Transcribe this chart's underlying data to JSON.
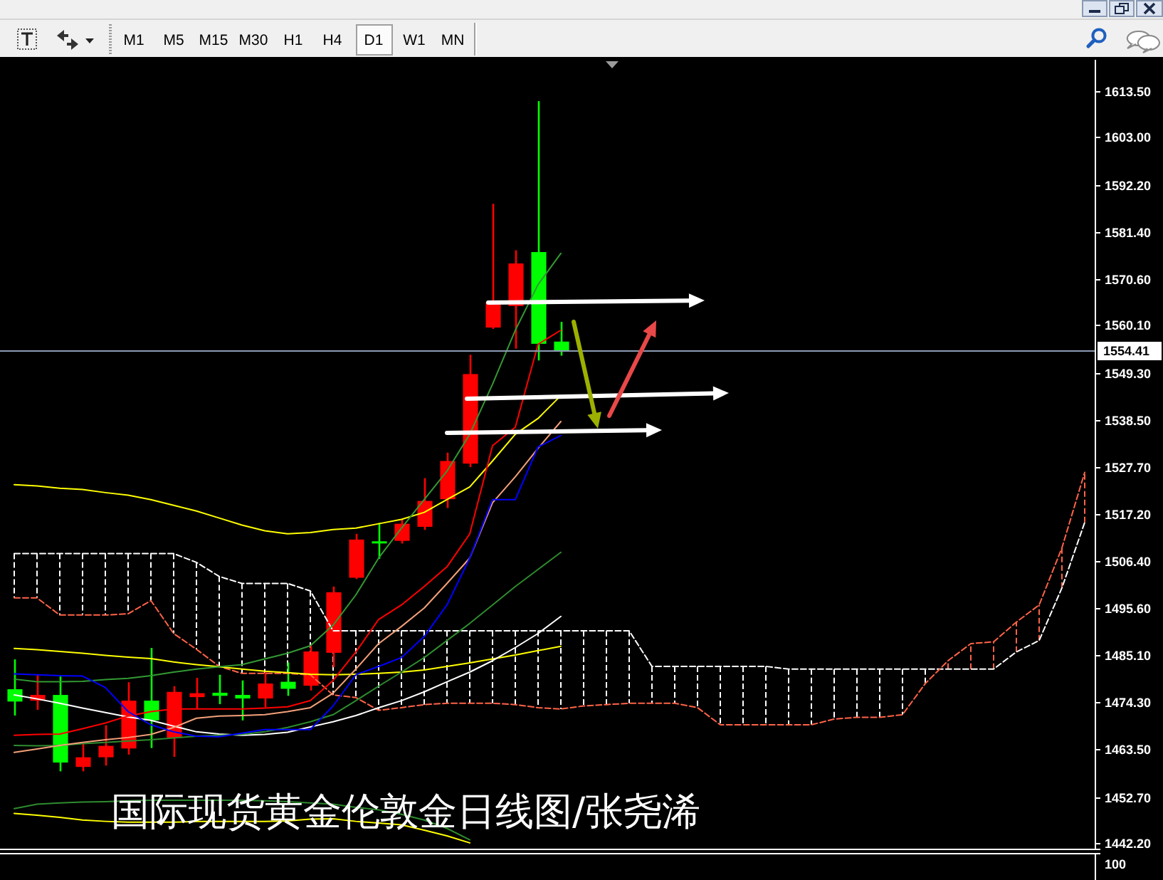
{
  "chart_data": {
    "type": "candlestick",
    "title": "国际现货黄金伦敦金日线图/张尧浠",
    "annotations": [
      "M1",
      "M5",
      "M15",
      "M30",
      "H1",
      "H4",
      "D1",
      "W1",
      "MN",
      "100"
    ],
    "categories": [
      null,
      null,
      null,
      null,
      null,
      null,
      null,
      null,
      null,
      null,
      null,
      null,
      null,
      null,
      null,
      null,
      null,
      null,
      null,
      null,
      null,
      null,
      null,
      null,
      null,
      null,
      null,
      null,
      null,
      null,
      null,
      null,
      null,
      null,
      null,
      null,
      null,
      null,
      null,
      null,
      null,
      null,
      null,
      null,
      null,
      null,
      null,
      null
    ],
    "ohlc": [
      [
        1474.4,
        1484.0,
        1471.2,
        1477.2
      ],
      [
        1475.9,
        1480.5,
        1472.5,
        1474.6
      ],
      [
        1460.5,
        1480.1,
        1458.5,
        1475.9
      ],
      [
        1461.7,
        1464.7,
        1458.5,
        1459.5
      ],
      [
        1464.3,
        1469.0,
        1459.8,
        1461.7
      ],
      [
        1474.6,
        1478.8,
        1462.3,
        1463.7
      ],
      [
        1470.1,
        1486.6,
        1463.8,
        1474.6
      ],
      [
        1476.6,
        1477.9,
        1461.8,
        1466.1
      ],
      [
        1476.3,
        1479.8,
        1472.7,
        1475.4
      ],
      [
        1475.7,
        1480.5,
        1473.8,
        1476.4
      ],
      [
        1475.1,
        1479.2,
        1470.1,
        1475.9
      ],
      [
        1478.5,
        1481.1,
        1473.1,
        1475.1
      ],
      [
        1477.3,
        1483.3,
        1475.7,
        1478.9
      ],
      [
        1485.8,
        1487.2,
        1476.9,
        1478.0
      ],
      [
        1499.3,
        1500.6,
        1482.2,
        1485.5
      ],
      [
        1511.3,
        1512.6,
        1502.3,
        1502.6
      ],
      [
        1510.6,
        1515.1,
        1506.9,
        1510.9
      ],
      [
        1514.9,
        1516.0,
        1510.4,
        1511.0
      ],
      [
        1520.1,
        1525.3,
        1513.5,
        1514.2
      ],
      [
        1529.2,
        1531.1,
        1518.5,
        1520.5
      ],
      [
        1549.0,
        1553.4,
        1527.8,
        1528.6
      ],
      [
        1565.4,
        1587.8,
        1559.3,
        1559.6
      ],
      [
        1574.2,
        1577.2,
        1554.8,
        1564.5
      ],
      [
        1555.9,
        1611.2,
        1552.1,
        1576.8
      ],
      [
        1554.2,
        1560.9,
        1553.2,
        1556.4
      ],
      null,
      null,
      null,
      null,
      null,
      null,
      null,
      null,
      null,
      null,
      null,
      null,
      null,
      null,
      null,
      null,
      null,
      null,
      null,
      null,
      null,
      null,
      null
    ],
    "colors": [
      "#00ff00",
      "#ff0000",
      "#00ff00",
      "#ff0000",
      "#ff0000",
      "#ff0000",
      "#00ff00",
      "#ff0000",
      "#ff0000",
      "#00ff00",
      "#00ff00",
      "#ff0000",
      "#00ff00",
      "#ff0000",
      "#ff0000",
      "#ff0000",
      "#00ff00",
      "#ff0000",
      "#ff0000",
      "#ff0000",
      "#ff0000",
      "#ff0000",
      "#ff0000",
      "#00ff00",
      "#00ff00",
      null,
      null,
      null,
      null,
      null,
      null,
      null,
      null,
      null,
      null,
      null,
      null,
      null,
      null,
      null,
      null,
      null,
      null,
      null,
      null,
      null,
      null,
      null
    ],
    "series": [
      {
        "type": "line",
        "color": "#ffffff",
        "line_style": "dashed",
        "values": [
          1508.1,
          1508.1,
          1508.1,
          1508.1,
          1508.1,
          1508.1,
          1508.1,
          1508.1,
          1506.1,
          1502.9,
          1501.3,
          1501.3,
          1501.3,
          1499.6,
          1490.5,
          1490.5,
          1490.5,
          1490.5,
          1490.5,
          1490.5,
          1490.5,
          1490.5,
          1490.5,
          1490.5,
          1490.5,
          1490.5,
          1490.5,
          1490.5,
          1482.4,
          1482.4,
          1482.4,
          1482.4,
          1482.4,
          1482.4,
          1481.8,
          1481.8,
          1481.8,
          1481.8,
          1481.8,
          1481.8,
          1481.8,
          1481.8,
          1481.8,
          1481.8,
          1485.7,
          1488.3,
          1500.3,
          1515.2
        ]
      },
      {
        "type": "line",
        "color": "#ff6347",
        "line_style": "dashed",
        "values": [
          1498.0,
          1498.0,
          1494.1,
          1494.1,
          1494.1,
          1494.4,
          1497.4,
          1489.9,
          1486.3,
          1482.4,
          1480.8,
          1480.8,
          1480.8,
          1480.5,
          1475.9,
          1475.3,
          1472.4,
          1473.0,
          1473.7,
          1474.0,
          1474.0,
          1474.0,
          1473.7,
          1473.0,
          1472.7,
          1473.4,
          1473.7,
          1474.0,
          1474.0,
          1474.0,
          1473.0,
          1469.1,
          1469.1,
          1469.1,
          1469.1,
          1469.1,
          1470.4,
          1470.8,
          1470.8,
          1471.4,
          1478.5,
          1483.7,
          1487.6,
          1488.0,
          1492.5,
          1496.4,
          1509.4,
          1526.6
        ]
      },
      {
        "type": "line",
        "color": "#ffff00",
        "values": [
          1523.8,
          1523.5,
          1523.0,
          1522.7,
          1522.0,
          1521.4,
          1520.4,
          1519.1,
          1517.8,
          1516.2,
          1514.6,
          1513.3,
          1512.6,
          1512.9,
          1513.6,
          1513.9,
          1514.9,
          1515.9,
          1517.5,
          1520.4,
          1523.3,
          1529.2,
          1535.3,
          1538.9,
          1544.1,
          null,
          null,
          null,
          null,
          null,
          null,
          null,
          null,
          null,
          null,
          null,
          null,
          null,
          null,
          null,
          null,
          null,
          null,
          null,
          null,
          null,
          null,
          null
        ]
      },
      {
        "type": "line",
        "color": "#ffff00",
        "values": [
          1486.5,
          1486.2,
          1485.8,
          1485.4,
          1484.9,
          1484.5,
          1484.2,
          1483.4,
          1482.8,
          1482.3,
          1481.8,
          1481.3,
          1481.0,
          1480.6,
          1480.5,
          1480.6,
          1480.8,
          1481.1,
          1481.6,
          1482.4,
          1483.2,
          1484.1,
          1485.0,
          1486.0,
          1487.0,
          null,
          null,
          null,
          null,
          null,
          null,
          null,
          null,
          null,
          null,
          null,
          null,
          null,
          null,
          null,
          null,
          null,
          null,
          null,
          null,
          null,
          null,
          null
        ]
      },
      {
        "type": "line",
        "color": "#ffff00",
        "values": [
          1448.9,
          1448.5,
          1448.0,
          1447.4,
          1447.1,
          1446.9,
          1446.9,
          1446.9,
          1447.1,
          1447.1,
          1447.1,
          1447.1,
          1447.2,
          1447.6,
          1447.7,
          1447.1,
          1446.7,
          1446.3,
          1445.1,
          1443.8,
          1442.2,
          null,
          null,
          null,
          null,
          null,
          null,
          null,
          null,
          null,
          null,
          null,
          null,
          null,
          null,
          null,
          null,
          null,
          null,
          null,
          null,
          null,
          null,
          null,
          null,
          null,
          null,
          null
        ]
      },
      {
        "type": "line",
        "color": "#ffffff",
        "values": [
          1475.9,
          1475.0,
          1474.0,
          1472.9,
          1471.9,
          1470.9,
          1470.1,
          1468.8,
          1467.5,
          1467.0,
          1466.7,
          1466.9,
          1467.4,
          1468.6,
          1469.8,
          1471.2,
          1473.0,
          1474.6,
          1476.6,
          1478.9,
          1481.1,
          1483.7,
          1486.7,
          1489.9,
          1493.8,
          null,
          null,
          null,
          null,
          null,
          null,
          null,
          null,
          null,
          null,
          null,
          null,
          null,
          null,
          null,
          null,
          null,
          null,
          null,
          null,
          null,
          null,
          null
        ]
      },
      {
        "type": "line",
        "color": "#339933",
        "values": [
          1479.5,
          1478.9,
          1478.9,
          1479.0,
          1479.4,
          1479.7,
          1480.3,
          1481.1,
          1481.8,
          1482.3,
          1482.8,
          1484.1,
          1485.4,
          1487.1,
          1491.8,
          1498.7,
          1507.1,
          1513.9,
          1520.4,
          1526.9,
          1535.3,
          1546.7,
          1559.0,
          1569.4,
          1576.5,
          null,
          null,
          null,
          null,
          null,
          null,
          null,
          null,
          null,
          null,
          null,
          null,
          null,
          null,
          null,
          null,
          null,
          null,
          null,
          null,
          null,
          null,
          null
        ]
      },
      {
        "type": "line",
        "color": "#2e8b2e",
        "values": [
          1464.4,
          1464.3,
          1464.4,
          1464.8,
          1465.1,
          1465.4,
          1465.7,
          1466.1,
          1466.5,
          1466.7,
          1466.9,
          1467.5,
          1468.5,
          1469.8,
          1471.4,
          1474.6,
          1477.9,
          1481.1,
          1484.4,
          1488.3,
          1492.2,
          1496.4,
          1500.6,
          1504.5,
          1508.4,
          null,
          null,
          null,
          null,
          null,
          null,
          null,
          null,
          null,
          null,
          null,
          null,
          null,
          null,
          null,
          null,
          null,
          null,
          null,
          null,
          null,
          null,
          null
        ]
      },
      {
        "type": "line",
        "color": "#2e8b2e",
        "values": [
          1450.0,
          1451.0,
          1451.3,
          1451.5,
          1451.6,
          1451.8,
          1451.9,
          1451.9,
          1451.9,
          1451.9,
          1451.9,
          1451.8,
          1451.6,
          1451.3,
          1451.0,
          1450.3,
          1449.7,
          1448.7,
          1447.4,
          1445.5,
          1442.9,
          null,
          null,
          null,
          null,
          null,
          null,
          null,
          null,
          null,
          null,
          null,
          null,
          null,
          null,
          null,
          null,
          null,
          null,
          null,
          null,
          null,
          null,
          null,
          null,
          null,
          null,
          null
        ]
      },
      {
        "type": "line",
        "color": "#f4a07a",
        "values": [
          1462.8,
          1463.6,
          1464.4,
          1465.1,
          1465.7,
          1466.2,
          1466.9,
          1468.5,
          1470.6,
          1471.1,
          1471.2,
          1471.4,
          1472.1,
          1473.0,
          1476.3,
          1481.8,
          1487.6,
          1491.5,
          1495.7,
          1501.3,
          1507.1,
          1519.7,
          1525.6,
          1532.1,
          1538.2,
          null,
          null,
          null,
          null,
          null,
          null,
          null,
          null,
          null,
          null,
          null,
          null,
          null,
          null,
          null,
          null,
          null,
          null,
          null,
          null,
          null,
          null,
          null
        ]
      },
      {
        "type": "line",
        "color": "#ff0000",
        "values": [
          1466.7,
          1466.9,
          1467.0,
          1468.2,
          1469.5,
          1471.1,
          1472.1,
          1472.7,
          1472.7,
          1472.7,
          1472.7,
          1472.9,
          1473.2,
          1474.6,
          1479.2,
          1485.7,
          1493.1,
          1496.4,
          1500.6,
          1505.1,
          1512.6,
          1532.7,
          1536.9,
          1555.8,
          1559.0,
          null,
          null,
          null,
          null,
          null,
          null,
          null,
          null,
          null,
          null,
          null,
          null,
          null,
          null,
          null,
          null,
          null,
          null,
          null,
          null,
          null,
          null,
          null
        ]
      },
      {
        "type": "line",
        "color": "#0000ff",
        "values": [
          1480.7,
          1480.5,
          1480.3,
          1480.2,
          1477.6,
          1472.1,
          1469.1,
          1467.5,
          1466.5,
          1466.4,
          1467.2,
          1468.0,
          1468.0,
          1468.0,
          1473.4,
          1480.5,
          1482.4,
          1484.4,
          1489.2,
          1496.4,
          1507.1,
          1520.4,
          1520.4,
          1532.4,
          1535.0,
          null,
          null,
          null,
          null,
          null,
          null,
          null,
          null,
          null,
          null,
          null,
          null,
          null,
          null,
          null,
          null,
          null,
          null,
          null,
          null,
          null,
          null,
          null
        ]
      }
    ],
    "ylim": [
      1441.2,
      1620.6
    ],
    "yticks": [
      {
        "value": 1613.5,
        "label": "1613.50"
      },
      {
        "value": 1603,
        "label": "1603.00"
      },
      {
        "value": 1592.2,
        "label": "1592.20"
      },
      {
        "value": 1581.4,
        "label": "1581.40"
      },
      {
        "value": 1570.6,
        "label": "1570.60"
      },
      {
        "value": 1560.1,
        "label": "1560.10"
      },
      {
        "value": 1549.3,
        "label": "1549.30"
      },
      {
        "value": 1538.5,
        "label": "1538.50"
      },
      {
        "value": 1527.7,
        "label": "1527.70"
      },
      {
        "value": 1517.2,
        "label": "1517.20"
      },
      {
        "value": 1506.4,
        "label": "1506.40"
      },
      {
        "value": 1495.6,
        "label": "1495.60"
      },
      {
        "value": 1485.1,
        "label": "1485.10"
      },
      {
        "value": 1474.3,
        "label": "1474.30"
      },
      {
        "value": 1463.5,
        "label": "1463.50"
      },
      {
        "value": 1452.7,
        "label": "1452.70"
      },
      {
        "value": 1442.2,
        "label": "1442.20"
      }
    ],
    "tick_labels": "y",
    "ref_lines": [
      {
        "axis": "y",
        "value": 1554.41,
        "label": "1554.41",
        "color": "#8c9cb4"
      }
    ]
  }
}
